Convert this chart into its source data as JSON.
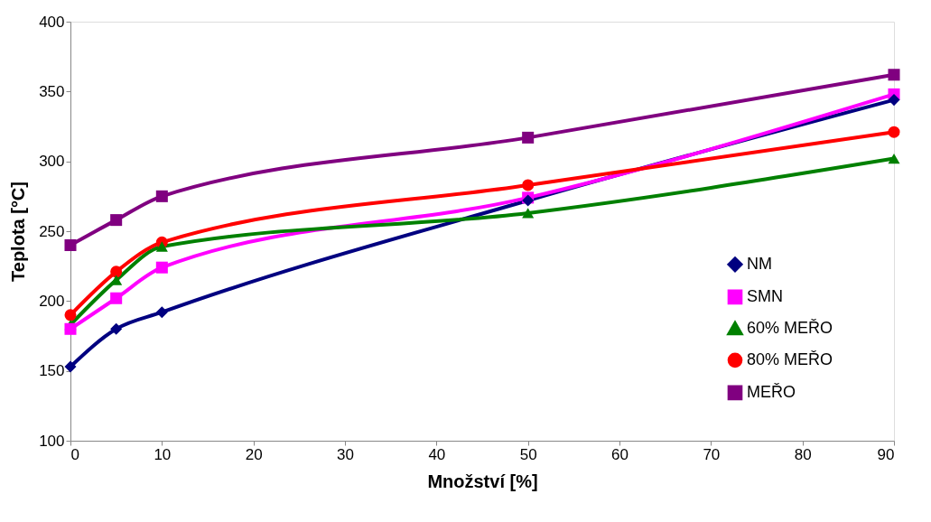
{
  "chart_data": {
    "type": "line",
    "xlabel": "Množství [%]",
    "ylabel": "Teplota [°C]",
    "x": [
      0,
      5,
      10,
      50,
      90
    ],
    "series": [
      {
        "name": "NM",
        "color": "#000080",
        "marker": "diamond",
        "values": [
          153,
          180,
          192,
          272,
          344
        ]
      },
      {
        "name": "SMN",
        "color": "#ff00ff",
        "marker": "square",
        "values": [
          180,
          202,
          224,
          274,
          348
        ]
      },
      {
        "name": "60% MEŘO",
        "color": "#008000",
        "marker": "triangle",
        "values": [
          183,
          215,
          239,
          263,
          302
        ]
      },
      {
        "name": "80% MEŘO",
        "color": "#ff0000",
        "marker": "circle",
        "values": [
          190,
          221,
          242,
          283,
          321
        ]
      },
      {
        "name": "MEŘO",
        "color": "#800080",
        "marker": "square",
        "values": [
          240,
          258,
          275,
          317,
          362
        ]
      }
    ],
    "xlim": [
      0,
      90
    ],
    "xticks": [
      0,
      10,
      20,
      30,
      40,
      50,
      60,
      70,
      80,
      90
    ],
    "ylim": [
      100,
      400
    ],
    "yticks": [
      100,
      150,
      200,
      250,
      300,
      350,
      400
    ],
    "grid": false,
    "legend": "right",
    "line_style": "solid"
  }
}
